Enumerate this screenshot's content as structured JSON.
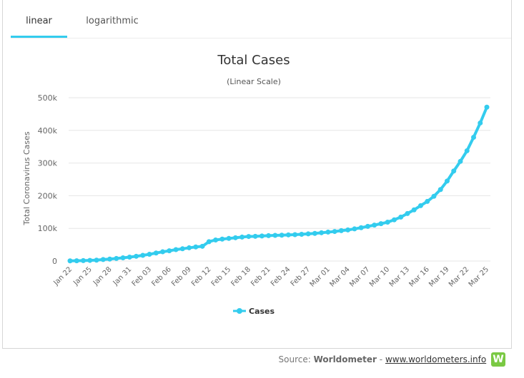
{
  "tabs": {
    "linear": "linear",
    "logarithmic": "logarithmic"
  },
  "source": {
    "prefix": "Source:",
    "name": "Worldometer",
    "sep": "-",
    "url": "www.worldometers.info",
    "logo_letter": "W"
  },
  "colors": {
    "series": "#33ccee",
    "tab_accent": "#33ccee",
    "grid": "#e6e6e6",
    "logo": "#7ac943"
  },
  "chart_data": {
    "type": "line",
    "title": "Total Cases",
    "subtitle": "(Linear Scale)",
    "ylabel": "Total Coronavirus Cases",
    "xlabel": "",
    "ylim": [
      0,
      500000
    ],
    "yticks": [
      0,
      100000,
      200000,
      300000,
      400000,
      500000
    ],
    "ytick_labels": [
      "0",
      "100k",
      "200k",
      "300k",
      "400k",
      "500k"
    ],
    "grid": true,
    "legend_position": "bottom-center",
    "x_tick_labels": [
      "Jan 22",
      "Jan 25",
      "Jan 28",
      "Jan 31",
      "Feb 03",
      "Feb 06",
      "Feb 09",
      "Feb 12",
      "Feb 15",
      "Feb 18",
      "Feb 21",
      "Feb 24",
      "Feb 27",
      "Mar 01",
      "Mar 04",
      "Mar 07",
      "Mar 10",
      "Mar 13",
      "Mar 16",
      "Mar 19",
      "Mar 22",
      "Mar 25"
    ],
    "x_tick_every": 3,
    "categories": [
      "Jan 22",
      "Jan 23",
      "Jan 24",
      "Jan 25",
      "Jan 26",
      "Jan 27",
      "Jan 28",
      "Jan 29",
      "Jan 30",
      "Jan 31",
      "Feb 01",
      "Feb 02",
      "Feb 03",
      "Feb 04",
      "Feb 05",
      "Feb 06",
      "Feb 07",
      "Feb 08",
      "Feb 09",
      "Feb 10",
      "Feb 11",
      "Feb 12",
      "Feb 13",
      "Feb 14",
      "Feb 15",
      "Feb 16",
      "Feb 17",
      "Feb 18",
      "Feb 19",
      "Feb 20",
      "Feb 21",
      "Feb 22",
      "Feb 23",
      "Feb 24",
      "Feb 25",
      "Feb 26",
      "Feb 27",
      "Feb 28",
      "Feb 29",
      "Mar 01",
      "Mar 02",
      "Mar 03",
      "Mar 04",
      "Mar 05",
      "Mar 06",
      "Mar 07",
      "Mar 08",
      "Mar 09",
      "Mar 10",
      "Mar 11",
      "Mar 12",
      "Mar 13",
      "Mar 14",
      "Mar 15",
      "Mar 16",
      "Mar 17",
      "Mar 18",
      "Mar 19",
      "Mar 20",
      "Mar 21",
      "Mar 22",
      "Mar 23",
      "Mar 24",
      "Mar 25"
    ],
    "series": [
      {
        "name": "Cases",
        "values": [
          580,
          845,
          1317,
          2015,
          2800,
          4581,
          6058,
          7813,
          9823,
          11950,
          14553,
          17391,
          20630,
          24545,
          28266,
          31439,
          34876,
          37552,
          40553,
          43099,
          45134,
          59287,
          64438,
          67100,
          69197,
          71329,
          73332,
          75184,
          75700,
          76677,
          77673,
          78651,
          79205,
          80087,
          80828,
          81820,
          83112,
          84615,
          86604,
          88585,
          90443,
          93016,
          95314,
          98425,
          102050,
          106099,
          109991,
          114381,
          118948,
          126214,
          134576,
          145483,
          156653,
          169593,
          182490,
          198238,
          218822,
          244933,
          275597,
          305036,
          337489,
          378830,
          422574,
          471035
        ]
      }
    ]
  }
}
